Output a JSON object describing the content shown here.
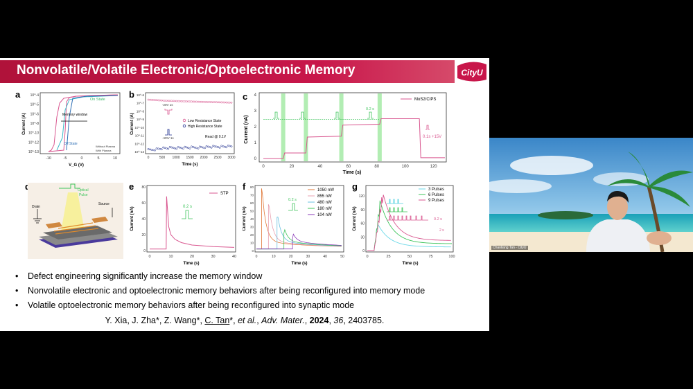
{
  "slide": {
    "title": "Nonvolatile/Volatile Electronic/Optoelectronic Memory",
    "logo_text": "CityU",
    "panel_labels": [
      "a",
      "b",
      "c",
      "d",
      "e",
      "f",
      "g"
    ],
    "bullets": [
      "Defect engineering significantly increase the memory window",
      "Nonvolatile electronic and optoelectronic memory behaviors after being reconfigured into memory mode",
      "Volatile optoelectronic memory behaviors after being reconfigured into synaptic mode"
    ],
    "citation": {
      "authors_pre": "Y. Xia, J. Zha*, Z. Wang*, ",
      "corresponding": "C. Tan",
      "authors_post": "*, ",
      "etal": "et al.",
      "sep": ", ",
      "journal": "Adv. Mater.",
      "sep2": ", ",
      "year": "2024",
      "sep3": ", ",
      "volume": "36",
      "rest": ", 2403785."
    }
  },
  "video": {
    "speaker_label": "Chaoliang Tan - CityU"
  },
  "colors": {
    "banner": "#c8164a",
    "pink": "#d9568f",
    "green": "#3cc45a",
    "navy": "#1a2a8c"
  },
  "chart_data": [
    {
      "id": "a",
      "type": "line",
      "xlabel": "V_G (V)",
      "ylabel": "Current (A)",
      "x_ticks": [
        "-10",
        "-5",
        "0",
        "5",
        "10"
      ],
      "y_ticks": [
        "10^-4",
        "10^-5",
        "10^-6",
        "10^-8",
        "10^-10",
        "10^-12",
        "10^-13"
      ],
      "annotations": [
        "On State",
        "Memory window",
        "Off State"
      ],
      "legend": [
        "Without Plasma",
        "With Plasma"
      ]
    },
    {
      "id": "b",
      "type": "scatter",
      "xlabel": "Time (s)",
      "ylabel": "Current (A)",
      "x_ticks": [
        "0",
        "500",
        "1000",
        "1500",
        "2000",
        "2500",
        "3000"
      ],
      "y_ticks": [
        "10^-6",
        "10^-7",
        "10^-8",
        "10^-9",
        "10^-10",
        "10^-11",
        "10^-12",
        "10^-13"
      ],
      "annotations": [
        "-20V 1s",
        "+20V 1s",
        "Read @ 0.1V"
      ],
      "series": [
        {
          "name": "Low Resistance State",
          "x": [
            0,
            500,
            1000,
            1500,
            2000,
            2500,
            3000
          ],
          "y": [
            2.5e-07,
            2e-07,
            1.7e-07,
            1.5e-07,
            1.3e-07,
            1.2e-07,
            1.1e-07
          ]
        },
        {
          "name": "High Resistance State",
          "x": [
            0,
            500,
            1000,
            1500,
            2000,
            2500,
            3000
          ],
          "y": [
            1.5e-13,
            2.5e-13,
            3e-13,
            3e-13,
            3.5e-13,
            4e-13,
            4.5e-13
          ]
        }
      ]
    },
    {
      "id": "c",
      "type": "line",
      "xlabel": "Time (s)",
      "ylabel": "Current (nA)",
      "x_ticks": [
        "0",
        "20",
        "40",
        "60",
        "80",
        "100",
        "120"
      ],
      "y_ticks": [
        "0",
        "1",
        "2",
        "3",
        "4"
      ],
      "legend": [
        "MoS2/CIPS"
      ],
      "annotations": [
        "0.2 s",
        "0.1s +15V"
      ],
      "series": [
        {
          "name": "MoS2/CIPS",
          "x": [
            0,
            14,
            15,
            30,
            31,
            55,
            56,
            82,
            83,
            110,
            111,
            128
          ],
          "y": [
            0,
            0,
            0.35,
            0.35,
            1.35,
            1.4,
            2.1,
            2.15,
            2.5,
            2.5,
            0.05,
            0.05
          ]
        }
      ]
    },
    {
      "id": "e",
      "type": "line",
      "xlabel": "Time (s)",
      "ylabel": "Current (nA)",
      "x_ticks": [
        "0",
        "10",
        "20",
        "30",
        "40"
      ],
      "y_ticks": [
        "0",
        "20",
        "40",
        "60",
        "80"
      ],
      "legend": [
        "STP"
      ],
      "annotations": [
        "0.2 s"
      ],
      "series": [
        {
          "name": "STP",
          "x": [
            0,
            7.8,
            8,
            9,
            10,
            12,
            15,
            20,
            30,
            40
          ],
          "y": [
            2,
            2,
            68,
            30,
            20,
            14,
            10,
            7,
            5,
            4
          ]
        }
      ]
    },
    {
      "id": "f",
      "type": "line",
      "xlabel": "Time (s)",
      "ylabel": "Current (nA)",
      "x_ticks": [
        "0",
        "10",
        "20",
        "30",
        "40",
        "50"
      ],
      "y_ticks": [
        "0",
        "10",
        "20",
        "30",
        "40",
        "50",
        "60",
        "70",
        "80"
      ],
      "annotations": [
        "0.2 s"
      ],
      "series": [
        {
          "name": "1050 nW",
          "peak_t": 3,
          "peak": 78
        },
        {
          "name": "855 nW",
          "peak_t": 7,
          "peak": 58
        },
        {
          "name": "480 nW",
          "peak_t": 12,
          "peak": 42
        },
        {
          "name": "180 nW",
          "peak_t": 16,
          "peak": 22
        },
        {
          "name": "104 nW",
          "peak_t": 21,
          "peak": 15
        }
      ]
    },
    {
      "id": "g",
      "type": "line",
      "xlabel": "Time (s)",
      "ylabel": "Current (nA)",
      "x_ticks": [
        "0",
        "25",
        "50",
        "75",
        "100"
      ],
      "y_ticks": [
        "0",
        "30",
        "60",
        "90",
        "120"
      ],
      "annotations": [
        "0.2 s",
        "2 s"
      ],
      "series": [
        {
          "name": "3 Pulses",
          "peak": 60,
          "end": 8
        },
        {
          "name": "6 Pulses",
          "peak": 110,
          "end": 15
        },
        {
          "name": "9 Pulses",
          "peak": 130,
          "end": 22
        }
      ]
    }
  ]
}
